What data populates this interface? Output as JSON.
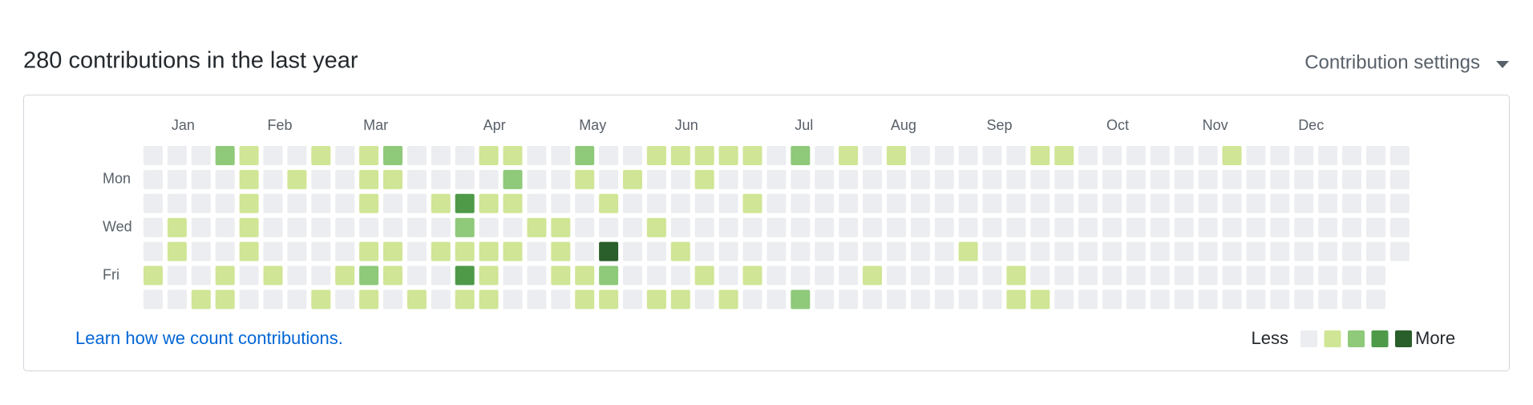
{
  "header": {
    "title": "280 contributions in the last year",
    "settings": "Contribution settings"
  },
  "months": [
    "Jan",
    "Feb",
    "Mar",
    "Apr",
    "May",
    "Jun",
    "Jul",
    "Aug",
    "Sep",
    "Oct",
    "Nov",
    "Dec"
  ],
  "days": [
    "Mon",
    "Wed",
    "Fri"
  ],
  "level_colors": [
    "#ebedf0",
    "#d0e595",
    "#8fc97a",
    "#4e9a48",
    "#2a5e2a"
  ],
  "weeks": [
    [
      0,
      0,
      0,
      0,
      0,
      1,
      0
    ],
    [
      0,
      0,
      0,
      1,
      1,
      0,
      0
    ],
    [
      0,
      0,
      0,
      0,
      0,
      0,
      1
    ],
    [
      2,
      0,
      0,
      0,
      0,
      1,
      1
    ],
    [
      1,
      1,
      1,
      1,
      1,
      0,
      0
    ],
    [
      0,
      0,
      0,
      0,
      0,
      1,
      0
    ],
    [
      0,
      1,
      0,
      0,
      0,
      0,
      0
    ],
    [
      1,
      0,
      0,
      0,
      0,
      0,
      1
    ],
    [
      0,
      0,
      0,
      0,
      0,
      1,
      0
    ],
    [
      1,
      1,
      1,
      0,
      1,
      2,
      1
    ],
    [
      2,
      1,
      0,
      0,
      1,
      1,
      0
    ],
    [
      0,
      0,
      0,
      0,
      0,
      0,
      1
    ],
    [
      0,
      0,
      1,
      0,
      1,
      0,
      0
    ],
    [
      0,
      0,
      3,
      2,
      1,
      3,
      1
    ],
    [
      1,
      0,
      1,
      0,
      1,
      1,
      1
    ],
    [
      1,
      2,
      1,
      0,
      1,
      0,
      0
    ],
    [
      0,
      0,
      0,
      1,
      0,
      0,
      0
    ],
    [
      0,
      0,
      0,
      1,
      1,
      1,
      0
    ],
    [
      2,
      1,
      0,
      0,
      0,
      1,
      1
    ],
    [
      0,
      0,
      1,
      0,
      4,
      2,
      1
    ],
    [
      0,
      1,
      0,
      0,
      0,
      0,
      0
    ],
    [
      1,
      0,
      0,
      1,
      0,
      0,
      1
    ],
    [
      1,
      0,
      0,
      0,
      1,
      0,
      1
    ],
    [
      1,
      1,
      0,
      0,
      0,
      1,
      0
    ],
    [
      1,
      0,
      0,
      0,
      0,
      0,
      1
    ],
    [
      1,
      0,
      1,
      0,
      0,
      1,
      0
    ],
    [
      0,
      0,
      0,
      0,
      0,
      0,
      0
    ],
    [
      2,
      0,
      0,
      0,
      0,
      0,
      2
    ],
    [
      0,
      0,
      0,
      0,
      0,
      0,
      0
    ],
    [
      1,
      0,
      0,
      0,
      0,
      0,
      0
    ],
    [
      0,
      0,
      0,
      0,
      0,
      1,
      0
    ],
    [
      1,
      0,
      0,
      0,
      0,
      0,
      0
    ],
    [
      0,
      0,
      0,
      0,
      0,
      0,
      0
    ],
    [
      0,
      0,
      0,
      0,
      0,
      0,
      0
    ],
    [
      0,
      0,
      0,
      0,
      1,
      0,
      0
    ],
    [
      0,
      0,
      0,
      0,
      0,
      0,
      0
    ],
    [
      0,
      0,
      0,
      0,
      0,
      1,
      1
    ],
    [
      1,
      0,
      0,
      0,
      0,
      0,
      1
    ],
    [
      1,
      0,
      0,
      0,
      0,
      0,
      0
    ],
    [
      0,
      0,
      0,
      0,
      0,
      0,
      0
    ],
    [
      0,
      0,
      0,
      0,
      0,
      0,
      0
    ],
    [
      0,
      0,
      0,
      0,
      0,
      0,
      0
    ],
    [
      0,
      0,
      0,
      0,
      0,
      0,
      0
    ],
    [
      0,
      0,
      0,
      0,
      0,
      0,
      0
    ],
    [
      0,
      0,
      0,
      0,
      0,
      0,
      0
    ],
    [
      1,
      0,
      0,
      0,
      0,
      0,
      0
    ],
    [
      0,
      0,
      0,
      0,
      0,
      0,
      0
    ],
    [
      0,
      0,
      0,
      0,
      0,
      0,
      0
    ],
    [
      0,
      0,
      0,
      0,
      0,
      0,
      0
    ],
    [
      0,
      0,
      0,
      0,
      0,
      0,
      0
    ],
    [
      0,
      0,
      0,
      0,
      0,
      0,
      0
    ],
    [
      0,
      0,
      0,
      0,
      0,
      0,
      0
    ],
    [
      0,
      0,
      0,
      0,
      0
    ]
  ],
  "footer": {
    "link": "Learn how we count contributions.",
    "less": "Less",
    "more": "More"
  }
}
